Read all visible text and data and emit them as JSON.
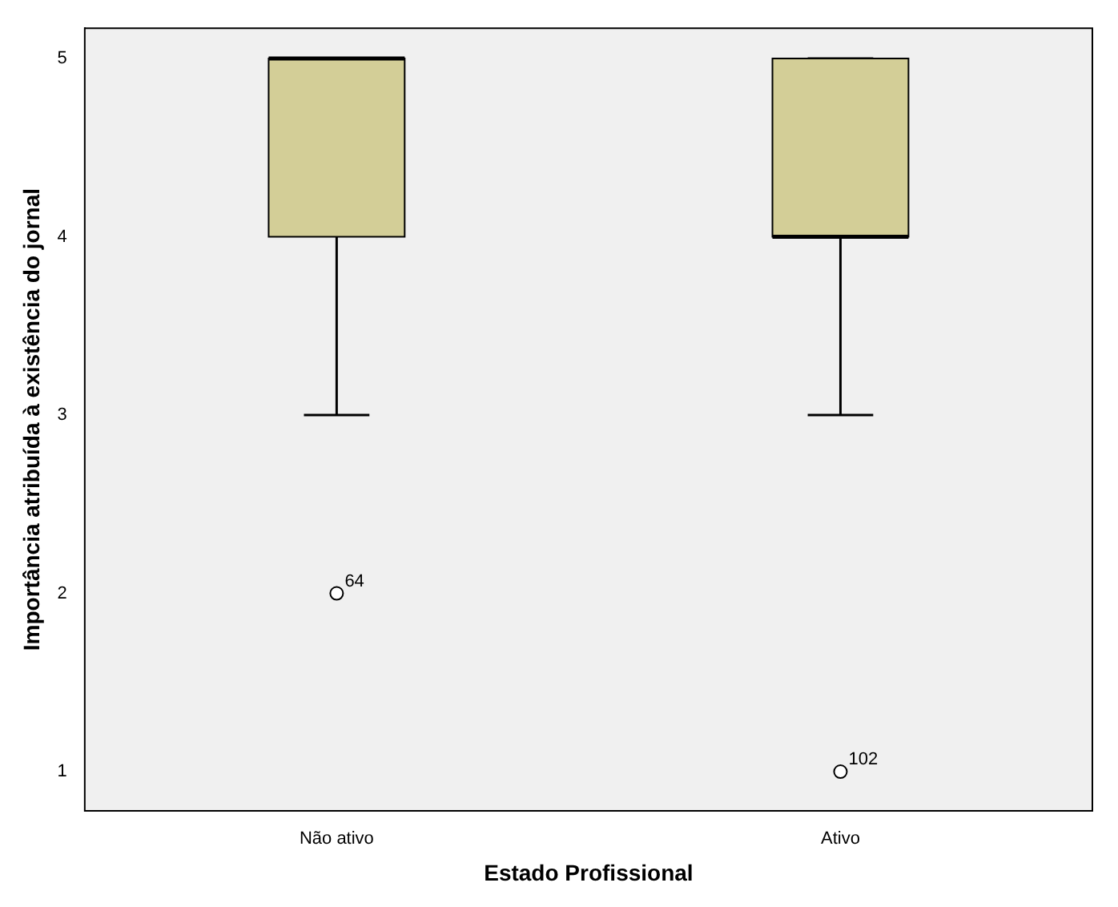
{
  "chart_data": {
    "type": "box",
    "xlabel": "Estado Profissional",
    "ylabel": "Importância atribuída à existência do jornal",
    "categories": [
      "Não ativo",
      "Ativo"
    ],
    "color": "#d3ce97",
    "boxes": [
      {
        "low": 3,
        "q1": 4,
        "median": 5,
        "q3": 5,
        "high": 5,
        "outliers": [
          2
        ]
      },
      {
        "low": 3,
        "q1": 4,
        "median": 4,
        "q3": 5,
        "high": 5,
        "outliers": [
          1
        ]
      }
    ],
    "ylim": [
      0.78,
      5.17
    ],
    "yticks": [
      1,
      2,
      3,
      4,
      5
    ],
    "annotations": [
      "64",
      "102"
    ]
  }
}
